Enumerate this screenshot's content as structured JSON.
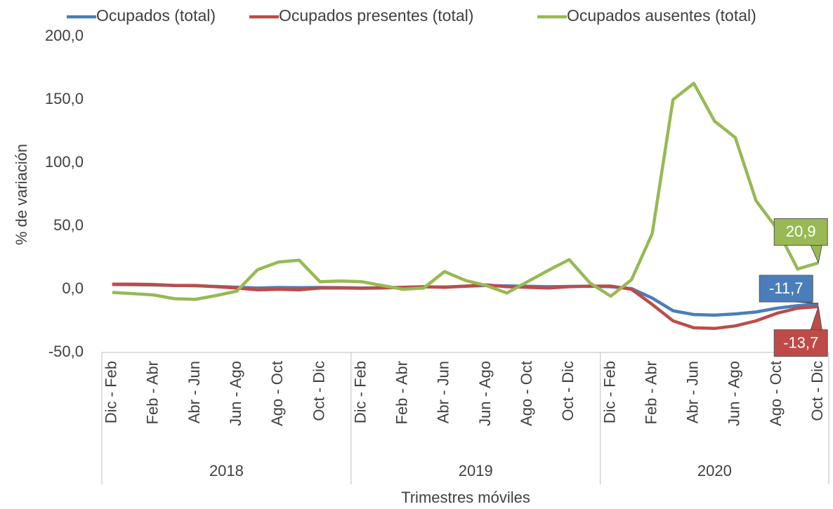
{
  "chart_data": {
    "type": "line",
    "x_label": "Trimestres móviles",
    "y_label": "% de variación",
    "category_groups": [
      {
        "label": "2018",
        "categories": [
          "Dic - Feb",
          null,
          "Feb - Abr",
          null,
          "Abr - Jun",
          null,
          "Jun - Ago",
          null,
          "Ago - Oct",
          null,
          "Oct - Dic",
          null
        ]
      },
      {
        "label": "2019",
        "categories": [
          "Dic - Feb",
          null,
          "Feb - Abr",
          null,
          "Abr - Jun",
          null,
          "Jun - Ago",
          null,
          "Ago - Oct",
          null,
          "Oct - Dic",
          null
        ]
      },
      {
        "label": "2020",
        "categories": [
          "Dic - Feb",
          null,
          "Feb - Abr",
          null,
          "Abr - Jun",
          null,
          "Jun - Ago",
          null,
          "Ago - Oct",
          null,
          "Oct - Dic"
        ]
      }
    ],
    "series": [
      {
        "name": "Ocupados (total)",
        "color": "#4a7ebb",
        "values": [
          3.8,
          3.6,
          3.4,
          3,
          2.8,
          2.2,
          1.6,
          1,
          1.4,
          1.2,
          1.4,
          1.2,
          1,
          1.2,
          1.5,
          1.8,
          1.8,
          2.4,
          3,
          2.6,
          2.4,
          2,
          2.2,
          2.4,
          2,
          0.5,
          -7,
          -17,
          -20,
          -20.5,
          -19.5,
          -18,
          -15,
          -13,
          -11.7
        ],
        "value_labels": [
          null,
          null,
          null,
          null,
          null,
          null,
          null,
          null,
          null,
          null,
          null,
          null,
          null,
          null,
          null,
          null,
          null,
          null,
          null,
          null,
          null,
          null,
          null,
          null,
          null,
          null,
          null,
          null,
          null,
          null,
          null,
          null,
          null,
          null,
          "-11,7"
        ]
      },
      {
        "name": "Ocupados presentes (total)",
        "color": "#be4b48",
        "values": [
          4,
          4,
          3.8,
          3,
          3,
          2,
          1,
          -0.5,
          0,
          -0.5,
          1,
          1,
          0.8,
          1,
          1.5,
          2,
          1.5,
          2.5,
          3.5,
          2,
          1.5,
          1,
          2,
          2.5,
          2.5,
          0,
          -12,
          -25,
          -30.5,
          -31,
          -29,
          -25,
          -19,
          -15,
          -13.7
        ],
        "value_labels": [
          null,
          null,
          null,
          null,
          null,
          null,
          null,
          null,
          null,
          null,
          null,
          null,
          null,
          null,
          null,
          null,
          null,
          null,
          null,
          null,
          null,
          null,
          null,
          null,
          null,
          null,
          null,
          null,
          null,
          null,
          null,
          null,
          null,
          null,
          "-13,7"
        ]
      },
      {
        "name": "Ocupados ausentes (total)",
        "color": "#98b954",
        "values": [
          -2.5,
          -3.5,
          -4.5,
          -7.5,
          -8,
          -5,
          -1.5,
          15.5,
          21.5,
          23,
          6,
          6.5,
          6,
          3,
          0,
          1,
          14,
          7,
          3,
          -3,
          6,
          15,
          23.5,
          5,
          -5.5,
          7.5,
          44,
          150,
          163,
          133,
          120,
          70,
          48,
          16,
          20.9
        ],
        "value_labels": [
          null,
          null,
          null,
          null,
          null,
          null,
          null,
          null,
          null,
          null,
          null,
          null,
          null,
          null,
          null,
          null,
          null,
          null,
          null,
          null,
          null,
          null,
          null,
          null,
          null,
          null,
          null,
          null,
          null,
          null,
          null,
          null,
          null,
          null,
          "20,9"
        ]
      }
    ],
    "ylim": [
      -50,
      200
    ],
    "yticks": [
      {
        "value": -50,
        "label": "-50,0"
      },
      {
        "value": 0,
        "label": "0,0"
      },
      {
        "value": 50,
        "label": "50,0"
      },
      {
        "value": 100,
        "label": "100,0"
      },
      {
        "value": 150,
        "label": "150,0"
      },
      {
        "value": 200,
        "label": "200,0"
      }
    ],
    "grid": false,
    "legend": "top"
  }
}
